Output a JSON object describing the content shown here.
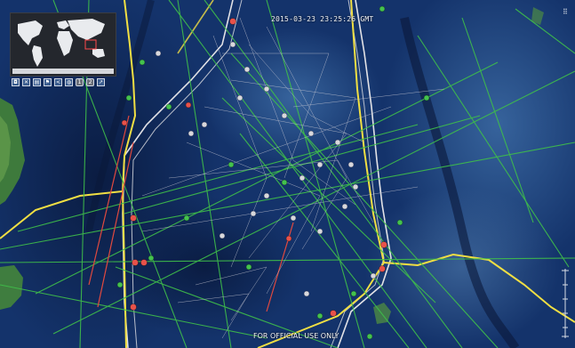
{
  "header": {
    "timestamp": "2015-03-23 23:25:26 GMT"
  },
  "footer": {
    "classification": "FOR OFFICIAL USE ONLY"
  },
  "overview_map": {
    "label": "overview-world-map"
  },
  "toolbar": {
    "tools": [
      {
        "name": "camera-tool",
        "glyph": "◘"
      },
      {
        "name": "close-tool",
        "glyph": "✕"
      },
      {
        "name": "layers-tool",
        "glyph": "▤"
      },
      {
        "name": "flag-tool",
        "glyph": "⚑"
      },
      {
        "name": "share-tool",
        "glyph": "<"
      },
      {
        "name": "globe-tool",
        "glyph": "◍"
      },
      {
        "name": "view-1-button",
        "glyph": "1"
      },
      {
        "name": "view-2-button",
        "glyph": "2"
      },
      {
        "name": "pointer-tool",
        "glyph": "↗"
      }
    ]
  },
  "corner_control": {
    "glyph": "⠿"
  },
  "colors": {
    "ocean": "#0d2552",
    "search_boundary": "#e2e2e6",
    "zone_line": "#f1df43",
    "track_green": "#3fbf4a",
    "track_red": "#e0493f",
    "track_white": "#c9c9d4",
    "vessel_white": "#d8d8dc",
    "vessel_green": "#44c24e",
    "vessel_red": "#e8524a"
  }
}
